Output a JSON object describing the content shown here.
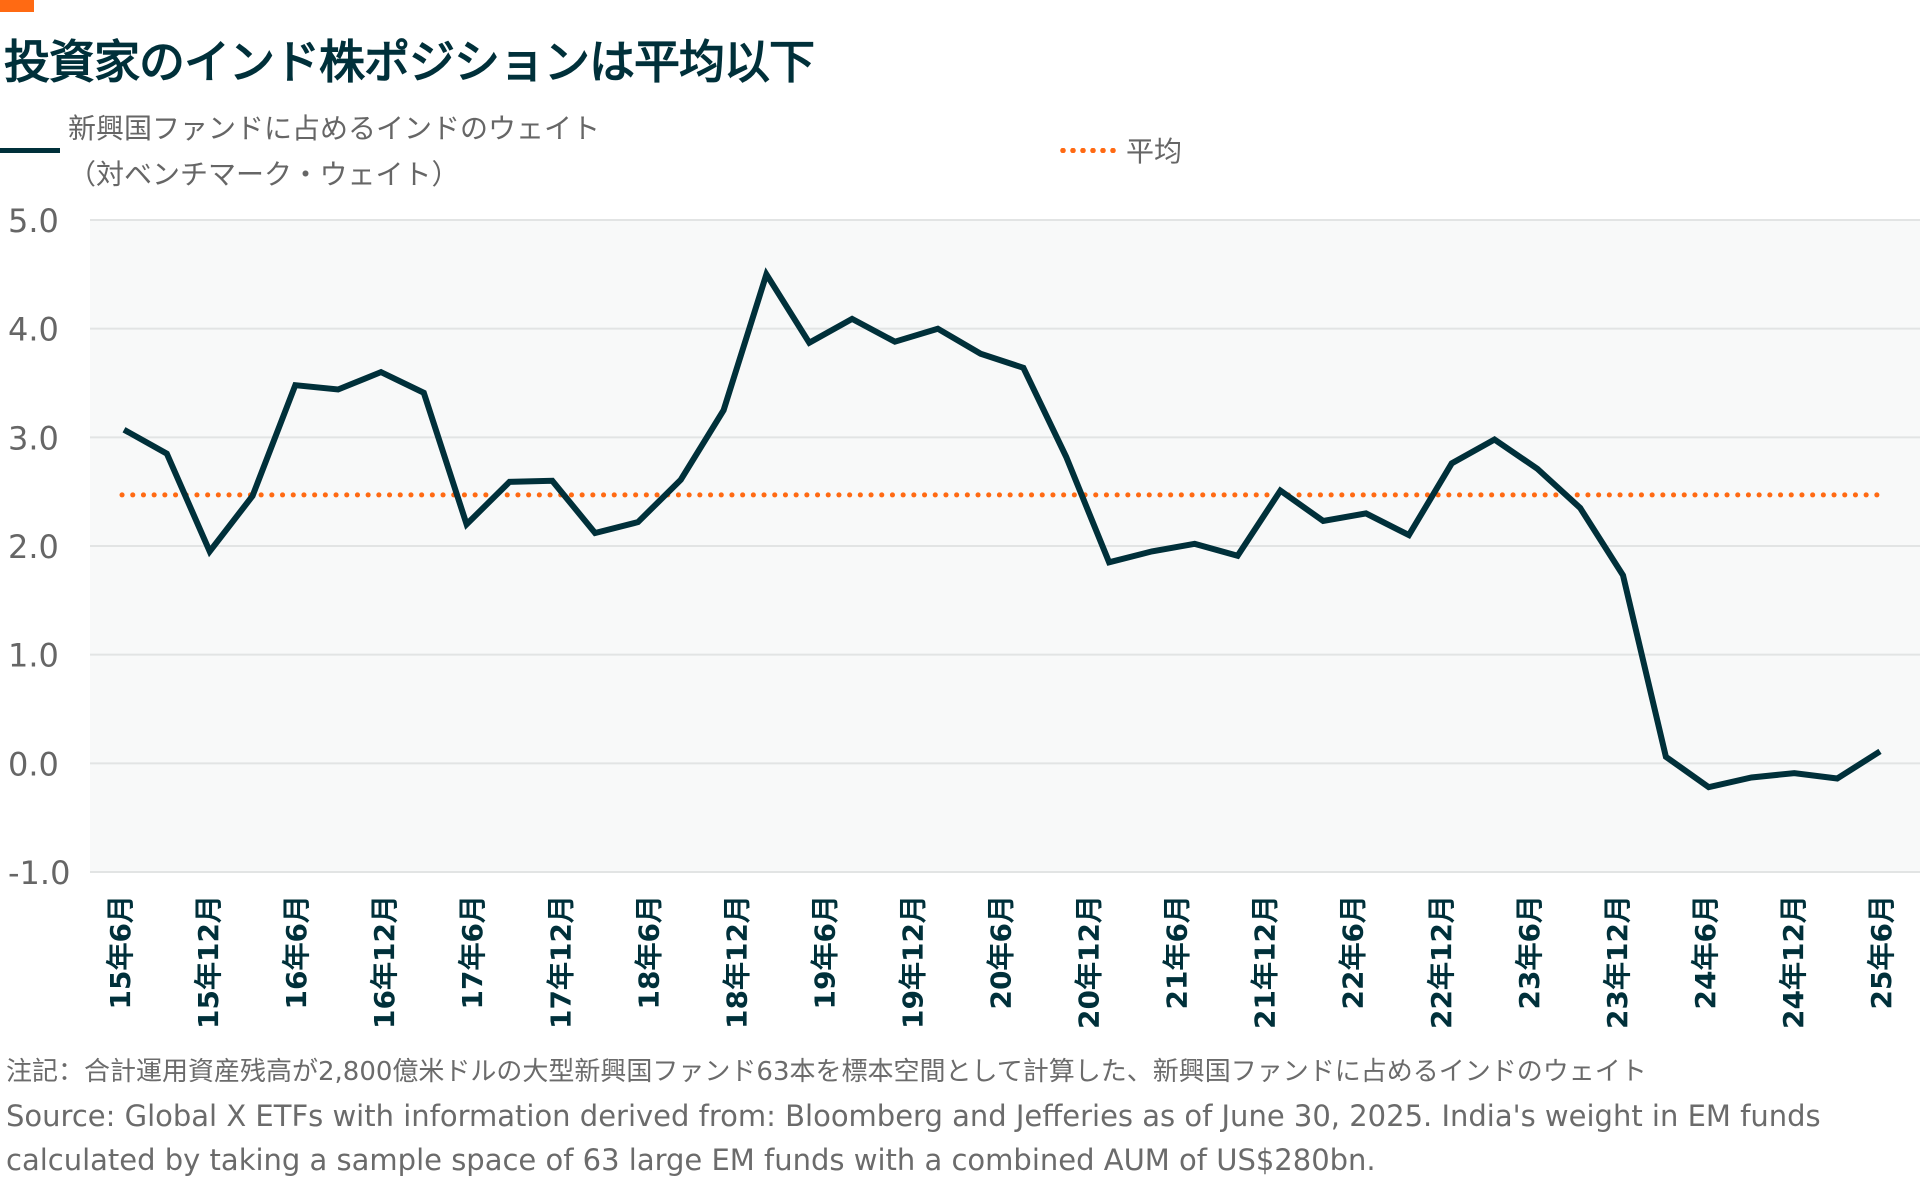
{
  "title": "投資家のインド株ポジションは平均以下",
  "legend": {
    "series_label_line1": "新興国ファンドに占めるインドのウェイト",
    "series_label_line2": "（対ベンチマーク・ウェイト）",
    "average_label": "平均"
  },
  "colors": {
    "accent": "#FF6A13",
    "series": "#00303A",
    "average": "#FF6A13",
    "plot_bg": "#F8F9F9",
    "grid": "#E2E4E4"
  },
  "footer": {
    "note": "注記：合計運用資産残高が2,800億米ドルの大型新興国ファンド63本を標本空間として計算した、新興国ファンドに占めるインドのウェイト",
    "source": "Source: Global X ETFs with information derived from: Bloomberg and Jefferies as of June 30, 2025. India's weight in EM funds calculated by taking a sample space of 63 large EM funds with a combined AUM of US$280bn."
  },
  "chart_data": {
    "type": "line",
    "title": "投資家のインド株ポジションは平均以下",
    "xlabel": "",
    "ylabel": "",
    "ylim": [
      -1.0,
      5.0
    ],
    "yticks": [
      "5.0",
      "4.0",
      "3.0",
      "2.0",
      "1.0",
      "0.0",
      "-1.0"
    ],
    "ytick_values": [
      5,
      4,
      3,
      2,
      1,
      0,
      -1
    ],
    "xtick_labels": [
      "15年6月",
      "15年12月",
      "16年6月",
      "16年12月",
      "17年6月",
      "17年12月",
      "18年6月",
      "18年12月",
      "19年6月",
      "19年12月",
      "20年6月",
      "20年12月",
      "21年6月",
      "21年12月",
      "22年6月",
      "22年12月",
      "23年6月",
      "23年12月",
      "24年6月",
      "24年12月",
      "25年6月"
    ],
    "grid": true,
    "legend_position": "top",
    "series": [
      {
        "name": "新興国ファンドに占めるインドのウェイト（対ベンチマーク・ウェイト）",
        "style": "solid",
        "values": [
          3.07,
          2.85,
          1.95,
          2.46,
          3.48,
          3.44,
          3.6,
          3.41,
          2.2,
          2.59,
          2.6,
          2.12,
          2.22,
          2.61,
          3.25,
          4.5,
          3.87,
          4.09,
          3.88,
          4.0,
          3.77,
          3.64,
          2.82,
          1.85,
          1.95,
          2.02,
          1.91,
          2.51,
          2.23,
          2.3,
          2.1,
          2.76,
          2.98,
          2.71,
          2.35,
          1.73,
          0.06,
          -0.22,
          -0.13,
          -0.09,
          -0.14,
          0.11
        ]
      },
      {
        "name": "平均",
        "style": "dotted",
        "value": 2.47
      }
    ]
  }
}
